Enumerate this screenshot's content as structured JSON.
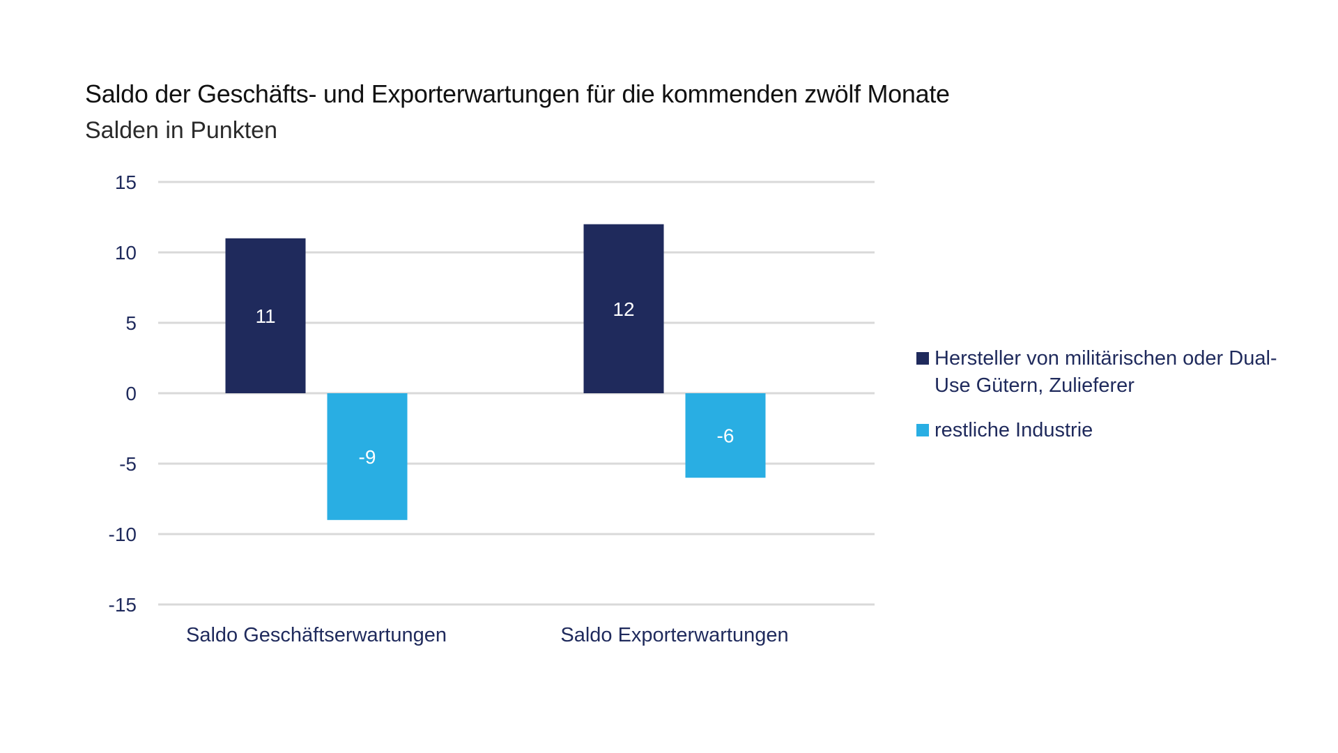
{
  "chart_data": {
    "type": "bar",
    "title": "Saldo der Geschäfts- und Exporterwartungen für die kommenden zwölf Monate",
    "subtitle": "Salden in Punkten",
    "xlabel": "",
    "ylabel": "",
    "categories": [
      "Saldo Geschäftserwartungen",
      "Saldo Exporterwartungen"
    ],
    "series": [
      {
        "name": "Hersteller von militärischen oder Dual-Use Gütern, Zulieferer",
        "values": [
          11,
          12
        ],
        "color": "#1f2a5c"
      },
      {
        "name": "restliche Industrie",
        "values": [
          -9,
          -6
        ],
        "color": "#29aee3"
      }
    ],
    "ylim": [
      -15,
      15
    ],
    "yticks": [
      15,
      10,
      5,
      0,
      -5,
      -10,
      -15
    ],
    "ytick_labels": [
      "15",
      "10",
      "5",
      "0",
      "-5",
      "-10",
      "-15"
    ],
    "data_labels": [
      [
        "11",
        "12"
      ],
      [
        "-9",
        "-6"
      ]
    ],
    "grid": true,
    "legend_position": "right"
  }
}
